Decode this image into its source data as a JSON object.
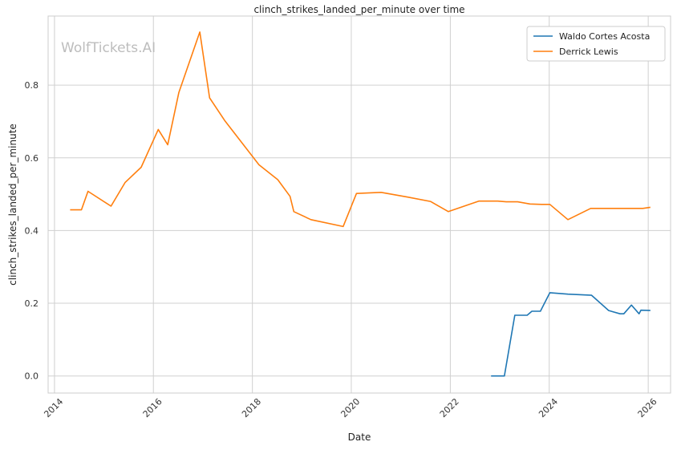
{
  "chart_data": {
    "type": "line",
    "title": "clinch_strikes_landed_per_minute over time",
    "xlabel": "Date",
    "ylabel": "clinch_strikes_landed_per_minute",
    "watermark": "WolfTickets.AI",
    "xlim": [
      "2013-11-15",
      "2026-06-15"
    ],
    "ylim": [
      -0.047,
      0.99
    ],
    "x_ticks": [
      "2014",
      "2016",
      "2018",
      "2020",
      "2022",
      "2024",
      "2026"
    ],
    "y_ticks": [
      "0.0",
      "0.2",
      "0.4",
      "0.6",
      "0.8"
    ],
    "grid": true,
    "legend_position": "top-right",
    "series": [
      {
        "name": "Waldo Cortes Acosta",
        "color": "#1f77b4",
        "points": [
          [
            "2022-10-29",
            0.0
          ],
          [
            "2023-02-04",
            0.0
          ],
          [
            "2023-04-22",
            0.167
          ],
          [
            "2023-07-22",
            0.167
          ],
          [
            "2023-08-26",
            0.178
          ],
          [
            "2023-10-28",
            0.178
          ],
          [
            "2024-01-06",
            0.229
          ],
          [
            "2024-05-18",
            0.225
          ],
          [
            "2024-11-09",
            0.222
          ],
          [
            "2025-03-15",
            0.18
          ],
          [
            "2025-06-07",
            0.171
          ],
          [
            "2025-07-05",
            0.171
          ],
          [
            "2025-08-30",
            0.195
          ],
          [
            "2025-10-25",
            0.171
          ],
          [
            "2025-11-08",
            0.181
          ],
          [
            "2026-01-17",
            0.18
          ]
        ]
      },
      {
        "name": "Derrick Lewis",
        "color": "#ff7f0e",
        "points": [
          [
            "2014-04-26",
            0.457
          ],
          [
            "2014-07-19",
            0.457
          ],
          [
            "2014-09-05",
            0.508
          ],
          [
            "2015-02-22",
            0.467
          ],
          [
            "2015-06-06",
            0.532
          ],
          [
            "2015-10-03",
            0.574
          ],
          [
            "2016-02-06",
            0.678
          ],
          [
            "2016-04-16",
            0.636
          ],
          [
            "2016-07-07",
            0.78
          ],
          [
            "2016-12-09",
            0.946
          ],
          [
            "2017-02-19",
            0.765
          ],
          [
            "2017-06-10",
            0.703
          ],
          [
            "2018-02-18",
            0.581
          ],
          [
            "2018-07-07",
            0.54
          ],
          [
            "2018-10-06",
            0.494
          ],
          [
            "2018-11-03",
            0.452
          ],
          [
            "2019-03-09",
            0.43
          ],
          [
            "2019-11-02",
            0.411
          ],
          [
            "2020-02-08",
            0.502
          ],
          [
            "2020-08-08",
            0.505
          ],
          [
            "2021-02-20",
            0.492
          ],
          [
            "2021-08-07",
            0.48
          ],
          [
            "2021-12-18",
            0.452
          ],
          [
            "2022-07-30",
            0.481
          ],
          [
            "2022-12-17",
            0.481
          ],
          [
            "2023-02-18",
            0.479
          ],
          [
            "2023-05-13",
            0.479
          ],
          [
            "2023-08-12",
            0.473
          ],
          [
            "2023-11-04",
            0.472
          ],
          [
            "2024-01-06",
            0.472
          ],
          [
            "2024-05-18",
            0.43
          ],
          [
            "2024-11-02",
            0.461
          ],
          [
            "2025-03-15",
            0.461
          ],
          [
            "2025-07-12",
            0.461
          ],
          [
            "2025-11-22",
            0.461
          ],
          [
            "2026-01-17",
            0.464
          ]
        ]
      }
    ]
  }
}
